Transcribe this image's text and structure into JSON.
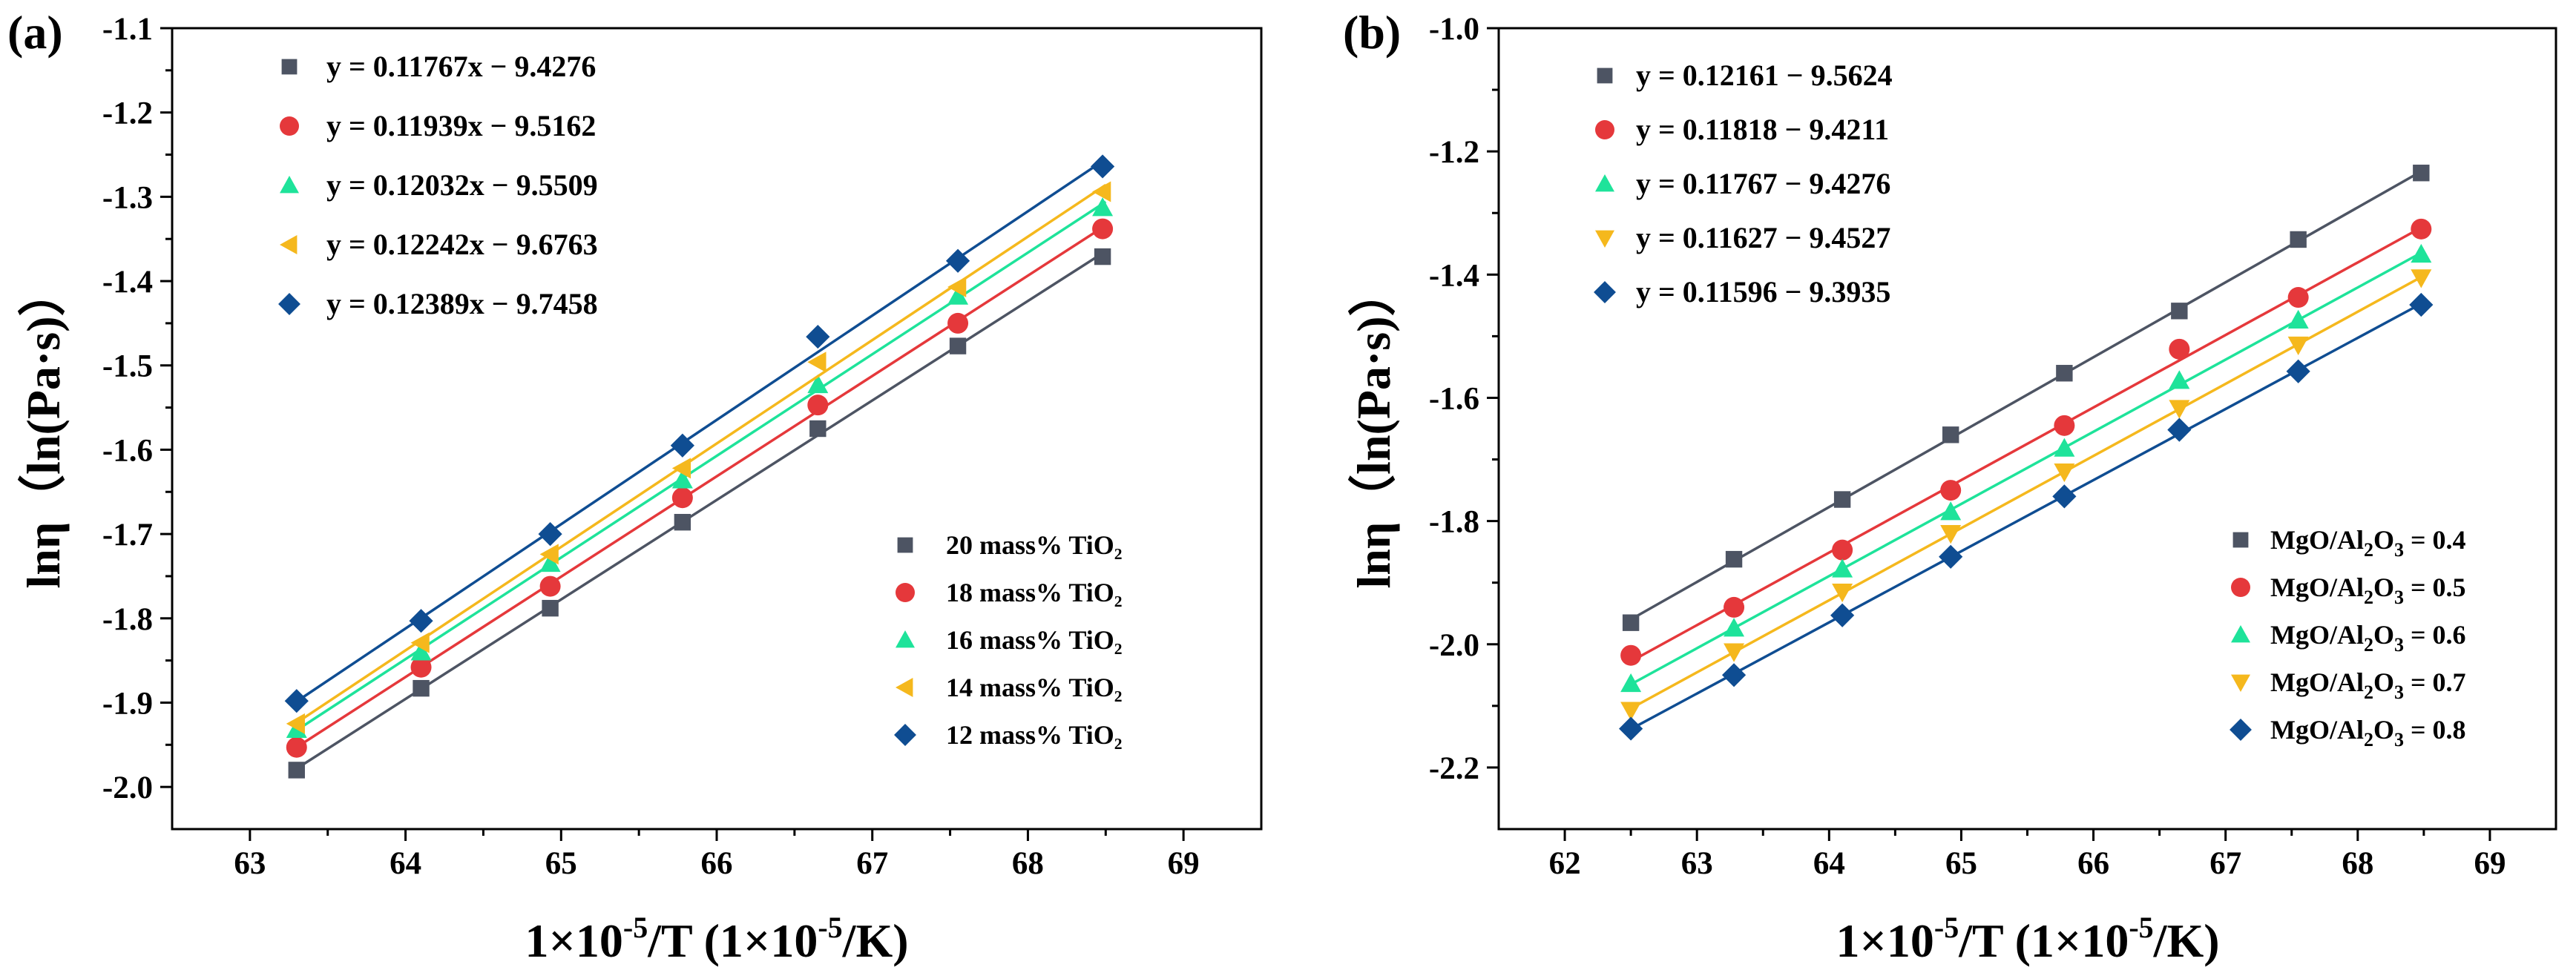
{
  "chart_data": [
    {
      "panel_label": "(a)",
      "type": "scatter",
      "xlabel": {
        "pre": "1×10",
        "sup": "-5",
        "post": "/T   (1×10",
        "sup2": "-5",
        "post2": "/K)"
      },
      "ylabel": "lnη（ln(Pa·s)）",
      "xlim": [
        62.5,
        69.5
      ],
      "ylim": [
        -2.05,
        -1.1
      ],
      "xticks": [
        "63",
        "64",
        "65",
        "66",
        "67",
        "68",
        "69"
      ],
      "yticks": [
        "-2.0",
        "-1.9",
        "-1.8",
        "-1.7",
        "-1.6",
        "-1.5",
        "-1.4",
        "-1.3",
        "-1.2",
        "-1.1"
      ],
      "x": [
        63.3,
        64.1,
        64.93,
        65.78,
        66.65,
        67.55,
        68.48
      ],
      "series": [
        {
          "name": "20 mass% TiO₂",
          "equation": "y = 0.11767x − 9.4276",
          "color": "#4d5463",
          "marker": "square",
          "fit": [
            0.11767,
            -9.4276
          ],
          "values": [
            -1.98,
            -1.883,
            -1.788,
            -1.686,
            -1.575,
            -1.477,
            -1.371
          ]
        },
        {
          "name": "18 mass% TiO₂",
          "equation": "y = 0.11939x − 9.5162",
          "color": "#e5383b",
          "marker": "circle",
          "fit": [
            0.11939,
            -9.5162
          ],
          "values": [
            -1.953,
            -1.858,
            -1.762,
            -1.657,
            -1.547,
            -1.45,
            -1.338
          ]
        },
        {
          "name": "16 mass% TiO₂",
          "equation": "y = 0.12032x − 9.5509",
          "color": "#1ee39a",
          "marker": "triangle-up",
          "fit": [
            0.12032,
            -9.5509
          ],
          "values": [
            -1.932,
            -1.84,
            -1.735,
            -1.636,
            -1.523,
            -1.418,
            -1.313
          ]
        },
        {
          "name": "14 mass% TiO₂",
          "equation": "y = 0.12242x − 9.6763",
          "color": "#f5b81d",
          "marker": "triangle-left",
          "fit": [
            0.12242,
            -9.6763
          ],
          "values": [
            -1.925,
            -1.829,
            -1.724,
            -1.622,
            -1.496,
            -1.407,
            -1.294
          ]
        },
        {
          "name": "12 mass% TiO₂",
          "equation": "y = 0.12389x − 9.7458",
          "color": "#0f4d92",
          "marker": "diamond",
          "fit": [
            0.12389,
            -9.7458
          ],
          "values": [
            -1.898,
            -1.803,
            -1.7,
            -1.595,
            -1.466,
            -1.376,
            -1.264
          ]
        }
      ]
    },
    {
      "panel_label": "(b)",
      "type": "scatter",
      "xlabel": {
        "pre": "1×10",
        "sup": "-5",
        "post": "/T   (1×10",
        "sup2": "-5",
        "post2": "/K)"
      },
      "ylabel": "lnη（ln(Pa·s)）",
      "xlim": [
        61.5,
        69.5
      ],
      "ylim": [
        -2.3,
        -1.0
      ],
      "xticks": [
        "62",
        "63",
        "64",
        "65",
        "66",
        "67",
        "68",
        "69"
      ],
      "yticks": [
        "-2.2",
        "-2.0",
        "-1.8",
        "-1.6",
        "-1.4",
        "-1.2",
        "-1.0"
      ],
      "x": [
        62.5,
        63.28,
        64.1,
        64.92,
        65.78,
        66.65,
        67.55,
        68.48
      ],
      "series": [
        {
          "name_pre": "MgO/Al",
          "name_sub": "2",
          "name_post": "O",
          "name_sub2": "3",
          "name_tail": " = 0.4",
          "equation": "y = 0.12161 − 9.5624",
          "color": "#4d5463",
          "marker": "square",
          "fit": [
            0.12161,
            -9.5624
          ],
          "values": [
            -1.965,
            -1.862,
            -1.765,
            -1.66,
            -1.56,
            -1.459,
            -1.343,
            -1.235
          ]
        },
        {
          "name_pre": "MgO/Al",
          "name_sub": "2",
          "name_post": "O",
          "name_sub2": "3",
          "name_tail": " = 0.5",
          "equation": "y = 0.11818 − 9.4211",
          "color": "#e5383b",
          "marker": "circle",
          "fit": [
            0.11818,
            -9.4211
          ],
          "values": [
            -2.018,
            -1.94,
            -1.847,
            -1.75,
            -1.645,
            -1.521,
            -1.437,
            -1.326
          ]
        },
        {
          "name_pre": "MgO/Al",
          "name_sub": "2",
          "name_post": "O",
          "name_sub2": "3",
          "name_tail": " = 0.6",
          "equation": "y = 0.11767 − 9.4276",
          "color": "#1ee39a",
          "marker": "triangle-up",
          "fit": [
            0.11767,
            -9.4276
          ],
          "values": [
            -2.064,
            -1.974,
            -1.878,
            -1.785,
            -1.682,
            -1.572,
            -1.474,
            -1.367
          ]
        },
        {
          "name_pre": "MgO/Al",
          "name_sub": "2",
          "name_post": "O",
          "name_sub2": "3",
          "name_tail": " = 0.7",
          "equation": "y = 0.11627 − 9.4527",
          "color": "#f5b81d",
          "marker": "triangle-down",
          "fit": [
            0.11627,
            -9.4527
          ],
          "values": [
            -2.107,
            -2.012,
            -1.915,
            -1.82,
            -1.72,
            -1.617,
            -1.514,
            -1.405
          ]
        },
        {
          "name_pre": "MgO/Al",
          "name_sub": "2",
          "name_post": "O",
          "name_sub2": "3",
          "name_tail": " = 0.8",
          "equation": "y = 0.11596 − 9.3935",
          "color": "#0f4d92",
          "marker": "diamond",
          "fit": [
            0.11596,
            -9.3935
          ],
          "values": [
            -2.137,
            -2.05,
            -1.953,
            -1.858,
            -1.76,
            -1.652,
            -1.557,
            -1.449
          ]
        }
      ]
    }
  ]
}
